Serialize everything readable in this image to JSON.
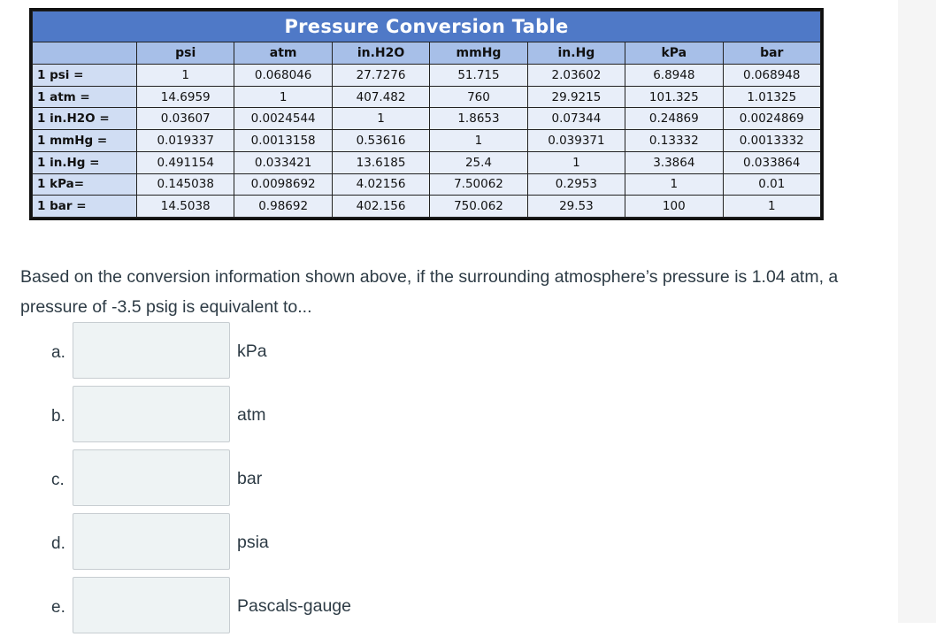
{
  "table": {
    "title": "Pressure Conversion Table",
    "columns": [
      "psi",
      "atm",
      "in.H2O",
      "mmHg",
      "in.Hg",
      "kPa",
      "bar"
    ],
    "rows": [
      {
        "label": "1 psi =",
        "values": [
          "1",
          "0.068046",
          "27.7276",
          "51.715",
          "2.03602",
          "6.8948",
          "0.068948"
        ]
      },
      {
        "label": "1 atm =",
        "values": [
          "14.6959",
          "1",
          "407.482",
          "760",
          "29.9215",
          "101.325",
          "1.01325"
        ]
      },
      {
        "label": "1 in.H2O =",
        "values": [
          "0.03607",
          "0.0024544",
          "1",
          "1.8653",
          "0.07344",
          "0.24869",
          "0.0024869"
        ]
      },
      {
        "label": "1 mmHg =",
        "values": [
          "0.019337",
          "0.0013158",
          "0.53616",
          "1",
          "0.039371",
          "0.13332",
          "0.0013332"
        ]
      },
      {
        "label": "1 in.Hg =",
        "values": [
          "0.491154",
          "0.033421",
          "13.6185",
          "25.4",
          "1",
          "3.3864",
          "0.033864"
        ]
      },
      {
        "label": "1 kPa=",
        "values": [
          "0.145038",
          "0.0098692",
          "4.02156",
          "7.50062",
          "0.2953",
          "1",
          "0.01"
        ]
      },
      {
        "label": "1 bar =",
        "values": [
          "14.5038",
          "0.98692",
          "402.156",
          "750.062",
          "29.53",
          "100",
          "1"
        ]
      }
    ]
  },
  "question": {
    "text": "Based on the conversion information shown above, if the surrounding atmosphere’s pressure is 1.04 atm, a pressure of -3.5 psig is equivalent to..."
  },
  "answers": [
    {
      "letter": "a.",
      "value": "",
      "unit": "kPa"
    },
    {
      "letter": "b.",
      "value": "",
      "unit": "atm"
    },
    {
      "letter": "c.",
      "value": "",
      "unit": "bar"
    },
    {
      "letter": "d.",
      "value": "",
      "unit": "psia"
    },
    {
      "letter": "e.",
      "value": "",
      "unit": "Pascals-gauge"
    }
  ],
  "colors": {
    "title_bar": "#4f79c7",
    "header_bg": "#a7bfe8",
    "label_bg": "#d0ddf3",
    "cell_bg": "#e8eef9",
    "input_bg": "#eef3f4",
    "text": "#2d3b45"
  }
}
